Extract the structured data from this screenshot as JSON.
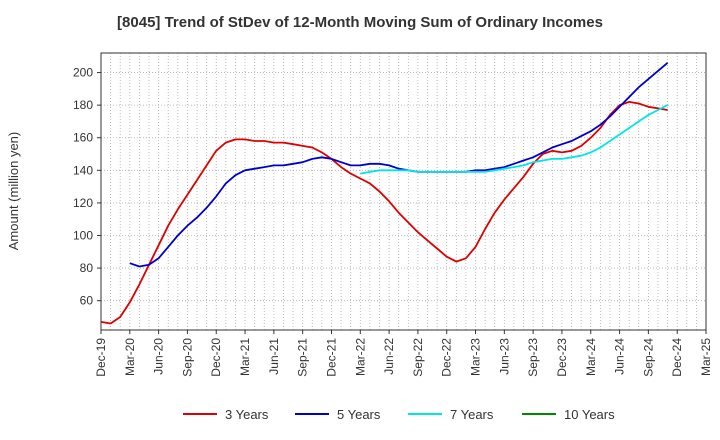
{
  "chart_data": {
    "type": "line",
    "title": "[8045]  Trend of StDev of 12-Month Moving Sum of Ordinary Incomes",
    "xlabel": "",
    "ylabel": "Amount (million yen)",
    "ylim": [
      42,
      212
    ],
    "yticks": [
      60,
      80,
      100,
      120,
      140,
      160,
      180,
      200
    ],
    "grid": true,
    "legend_position": "bottom",
    "x_tick_labels": [
      "Dec-19",
      "Mar-20",
      "Jun-20",
      "Sep-20",
      "Dec-20",
      "Mar-21",
      "Jun-21",
      "Sep-21",
      "Dec-21",
      "Mar-22",
      "Jun-22",
      "Sep-22",
      "Dec-22",
      "Mar-23",
      "Jun-23",
      "Sep-23",
      "Dec-23",
      "Mar-24",
      "Jun-24",
      "Sep-24",
      "Dec-24",
      "Mar-25"
    ],
    "x_start": "Dec-19",
    "x_unit": "month",
    "series": [
      {
        "name": "3 Years",
        "color": "#dd0000",
        "start_index": 0,
        "values": [
          47,
          46,
          50,
          59,
          70,
          82,
          94,
          106,
          116,
          125,
          134,
          143,
          152,
          157,
          159,
          159,
          158,
          158,
          157,
          157,
          156,
          155,
          154,
          151,
          147,
          142,
          138,
          135,
          132,
          127,
          121,
          114,
          108,
          102,
          97,
          92,
          87,
          84,
          86,
          93,
          104,
          114,
          122,
          129,
          136,
          144,
          150,
          152,
          151,
          152,
          155,
          160,
          166,
          174,
          180,
          182,
          181,
          179,
          178,
          177
        ]
      },
      {
        "name": "5 Years",
        "color": "#0000cc",
        "start_index": 3,
        "values": [
          83,
          81,
          82,
          86,
          93,
          100,
          106,
          111,
          117,
          124,
          132,
          137,
          140,
          141,
          142,
          143,
          143,
          144,
          145,
          147,
          148,
          147,
          145,
          143,
          143,
          144,
          144,
          143,
          141,
          140,
          139,
          139,
          139,
          139,
          139,
          139,
          140,
          140,
          141,
          142,
          144,
          146,
          148,
          151,
          154,
          156,
          158,
          161,
          164,
          168,
          173,
          179,
          185,
          191,
          196,
          201,
          206
        ]
      },
      {
        "name": "7 Years",
        "color": "#00e5e5",
        "start_index": 27,
        "values": [
          138,
          139,
          140,
          140,
          140,
          140,
          139,
          139,
          139,
          139,
          139,
          139,
          139,
          139,
          140,
          141,
          142,
          143,
          145,
          146,
          147,
          147,
          148,
          149,
          151,
          154,
          158,
          162,
          166,
          170,
          174,
          177,
          180
        ]
      },
      {
        "name": "10 Years",
        "color": "#008800",
        "start_index": 0,
        "values": []
      }
    ]
  }
}
